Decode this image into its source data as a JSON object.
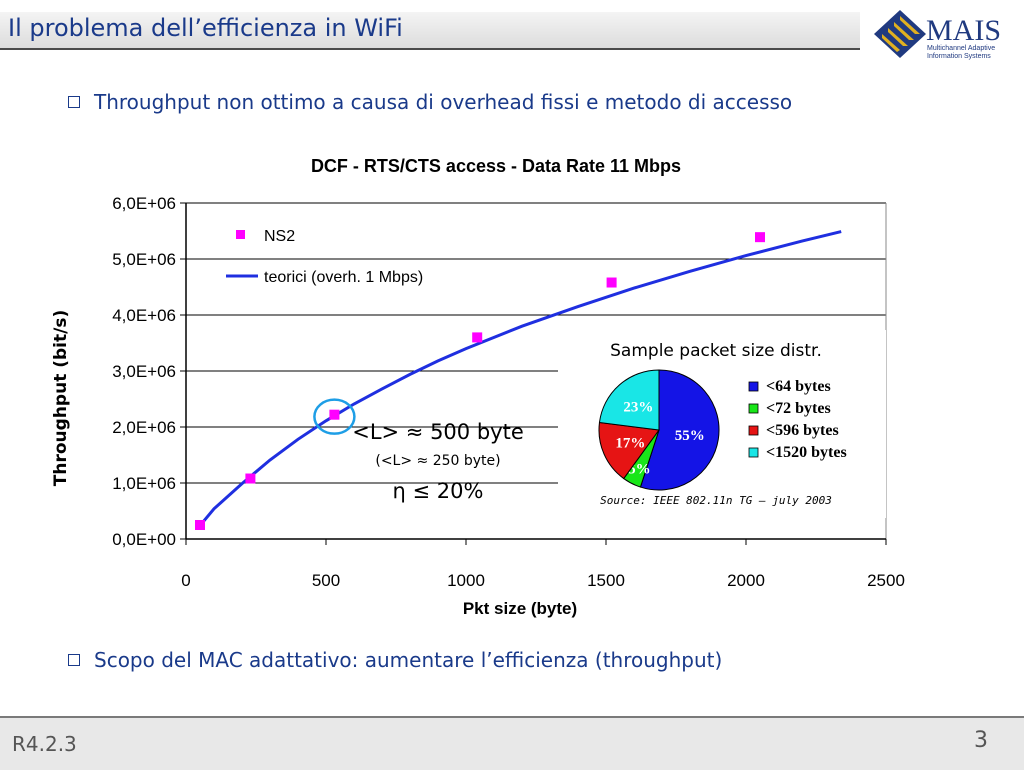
{
  "header": {
    "title": "Il problema dell’efficienza in WiFi",
    "logo": {
      "text": "MAIS",
      "subtitle_line1": "Multichannel Adaptive",
      "subtitle_line2": "Information Systems"
    }
  },
  "bullets": [
    "Throughput non ottimo a causa di overhead fissi e metodo di accesso",
    "Scopo del MAC adattativo: aumentare l’efficienza (throughput)"
  ],
  "annotation": {
    "line1": "<L> ≈ 500 byte",
    "line2": "(<L> ≈ 250 byte)",
    "line3": "η ≤ 20%"
  },
  "chart_data": [
    {
      "type": "line",
      "title": "DCF - RTS/CTS access - Data Rate 11 Mbps",
      "xlabel": "Pkt size (byte)",
      "ylabel": "Throughput (bit/s)",
      "xlim": [
        0,
        2500
      ],
      "ylim": [
        0,
        6000000
      ],
      "x_ticks": [
        0,
        500,
        1000,
        1500,
        2000,
        2500
      ],
      "x_tick_labels": [
        "0",
        "500",
        "1000",
        "1500",
        "2000",
        "2500"
      ],
      "y_ticks": [
        0,
        1000000,
        2000000,
        3000000,
        4000000,
        5000000,
        6000000
      ],
      "y_tick_labels": [
        "0,0E+00",
        "1,0E+06",
        "2,0E+06",
        "3,0E+06",
        "4,0E+06",
        "5,0E+06",
        "6,0E+06"
      ],
      "grid": "horizontal",
      "legend_position": "top-left",
      "series": [
        {
          "name": "NS2",
          "kind": "markers",
          "color": "#ff00ff",
          "x": [
            50,
            230,
            530,
            1040,
            1520,
            2050
          ],
          "y": [
            250000,
            1080000,
            2220000,
            3600000,
            4580000,
            5390000
          ]
        },
        {
          "name": "teorici (overh. 1 Mbps)",
          "kind": "line",
          "color": "#1f2fe0",
          "x": [
            40,
            100,
            200,
            300,
            400,
            500,
            600,
            700,
            800,
            900,
            1000,
            1200,
            1400,
            1600,
            1800,
            2000,
            2200,
            2340
          ],
          "y": [
            180000,
            540000,
            990000,
            1410000,
            1780000,
            2110000,
            2410000,
            2680000,
            2940000,
            3180000,
            3400000,
            3800000,
            4150000,
            4480000,
            4780000,
            5060000,
            5320000,
            5490000
          ]
        }
      ],
      "highlight": {
        "x": 530,
        "y": 2220000,
        "color": "#1e9ee6"
      }
    },
    {
      "type": "pie",
      "title": "Sample packet size distr.",
      "source": "Source: IEEE 802.11n TG – july 2003",
      "slices": [
        {
          "label": "<64 bytes",
          "value": 55,
          "text": "55%",
          "color": "#1414e6",
          "text_color": "#ffffff"
        },
        {
          "label": "<72 bytes",
          "value": 5,
          "text": "5%",
          "color": "#19e619",
          "text_color": "#ffffff"
        },
        {
          "label": "<596 bytes",
          "value": 17,
          "text": "17%",
          "color": "#e61414",
          "text_color": "#ffffff"
        },
        {
          "label": "<1520 bytes",
          "value": 23,
          "text": "23%",
          "color": "#19e6e6",
          "text_color": "#ffffff"
        }
      ]
    }
  ],
  "footer": {
    "code": "R4.2.3",
    "page": "3"
  }
}
